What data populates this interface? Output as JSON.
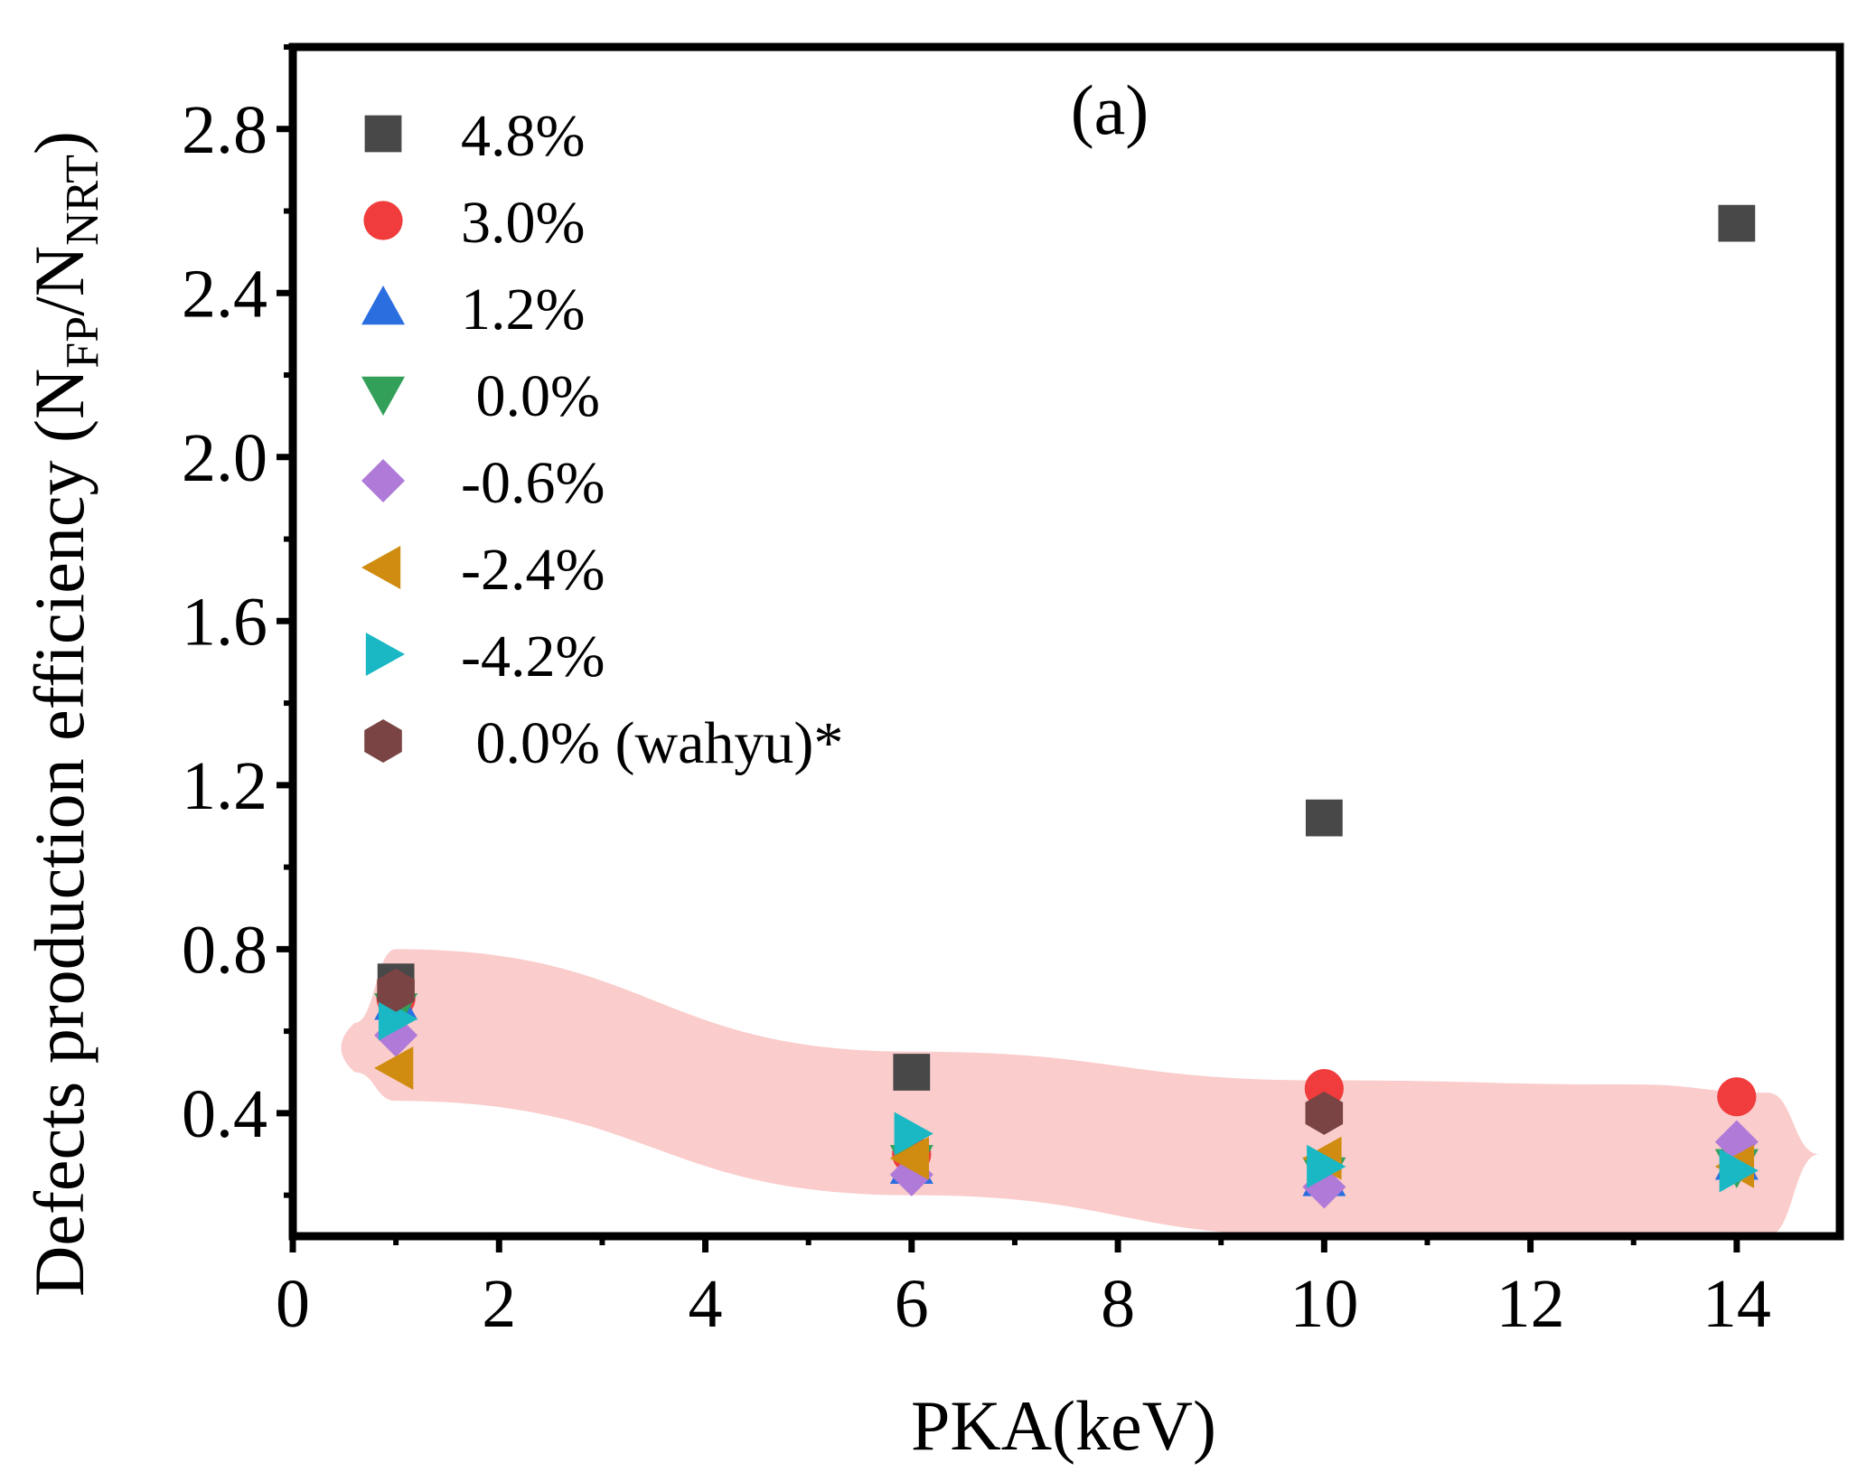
{
  "chart_data": {
    "type": "scatter",
    "panel_label": "(a)",
    "xlabel": "PKA(keV)",
    "ylabel": {
      "prefix": "Defects production efficiency (N",
      "sub1": "FP",
      "slash": "/N",
      "sub2": "NRT",
      "suffix": ")"
    },
    "xlim": [
      0,
      15
    ],
    "ylim": [
      0.1,
      3.0
    ],
    "xticks": [
      0,
      2,
      4,
      6,
      8,
      10,
      12,
      14
    ],
    "xtick_labels": [
      "0",
      "2",
      "4",
      "6",
      "8",
      "10",
      "12",
      "14"
    ],
    "yticks": [
      0.4,
      0.8,
      1.2,
      1.6,
      2.0,
      2.4,
      2.8
    ],
    "ytick_labels": [
      "0.4",
      "0.8",
      "1.2",
      "1.6",
      "2.0",
      "2.4",
      "2.8"
    ],
    "legend_position": "top-left",
    "highlight_band": {
      "color": "#f7aaa8",
      "upper": [
        [
          0.6,
          0.62
        ],
        [
          1.0,
          0.8
        ],
        [
          6,
          0.55
        ],
        [
          10,
          0.48
        ],
        [
          13,
          0.47
        ],
        [
          14.3,
          0.45
        ],
        [
          14.8,
          0.3
        ]
      ],
      "lower": [
        [
          0.6,
          0.5
        ],
        [
          1.0,
          0.43
        ],
        [
          6,
          0.2
        ],
        [
          10,
          0.1
        ],
        [
          13,
          0.08
        ],
        [
          14.3,
          0.1
        ],
        [
          14.8,
          0.3
        ]
      ]
    },
    "series": [
      {
        "name": "4.8%",
        "marker": "square",
        "color": "#484848",
        "x": [
          1,
          6,
          10,
          14
        ],
        "y": [
          0.72,
          0.5,
          1.12,
          2.57
        ]
      },
      {
        "name": "3.0%",
        "marker": "circle",
        "color": "#f03c3c",
        "x": [
          1,
          6,
          10,
          14
        ],
        "y": [
          0.68,
          0.3,
          0.46,
          0.44
        ]
      },
      {
        "name": "1.2%",
        "marker": "triangle-up",
        "color": "#2a6ee0",
        "x": [
          1,
          6,
          10,
          14
        ],
        "y": [
          0.67,
          0.27,
          0.24,
          0.28
        ]
      },
      {
        "name": " 0.0%",
        "marker": "triangle-down",
        "color": "#33a05a",
        "x": [
          1,
          6,
          10,
          14
        ],
        "y": [
          0.65,
          0.28,
          0.25,
          0.27
        ]
      },
      {
        "name": "-0.6%",
        "marker": "diamond",
        "color": "#b07ad8",
        "x": [
          1,
          6,
          10,
          14
        ],
        "y": [
          0.59,
          0.25,
          0.22,
          0.33
        ]
      },
      {
        "name": "-2.4%",
        "marker": "triangle-left",
        "color": "#cf8c10",
        "x": [
          1,
          6,
          10,
          14
        ],
        "y": [
          0.51,
          0.29,
          0.29,
          0.27
        ]
      },
      {
        "name": "-4.2%",
        "marker": "triangle-right",
        "color": "#19b8c4",
        "x": [
          1,
          6,
          10,
          14
        ],
        "y": [
          0.63,
          0.35,
          0.27,
          0.26
        ]
      },
      {
        "name": " 0.0% (wahyu)*",
        "marker": "hexagon",
        "color": "#7a4444",
        "x": [
          1,
          10
        ],
        "y": [
          0.7,
          0.4
        ]
      }
    ]
  }
}
